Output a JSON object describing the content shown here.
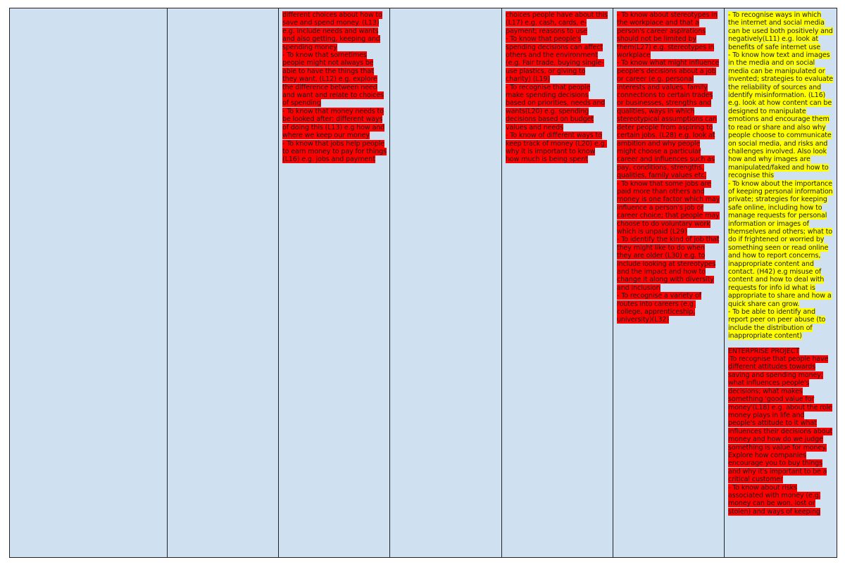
{
  "table": {
    "cells": {
      "c3": [
        "different choices about how to save and spend money. (L13) e.g. include needs and wants and also getting, keeping and spending money",
        "- To know that sometimes people might not always be able to have the things that they want. (L12) e.g. explore the difference between need and want and relate to choices of spending",
        "- To know that money needs to be looked after; different ways of doing this (L13) e.g how and where we keep our money",
        "- To know that jobs help people to earn money to pay for things (L16) e.g. jobs and payment"
      ],
      "c5": [
        "choices people have about this (L17) e.g. cash, cards, e-payment; reasons to use",
        "- To know that people's spending decisions can affect others and the environment (e.g. Fair trade, buying single-use plastics, or giving to charity) (L19)",
        "- To recognise that people make spending decisions based on priorities, needs and wants(L20) e.g. spending decisions based on budget values and needs",
        "- To know of different ways to keep track of money (L20) e.g. why it is important to know how much is being spent"
      ],
      "c6": [
        "- To know about stereotypes in the workplace and that a person's career aspirations should not be limited by them(L27) e.g. stereotypes in workplace",
        "- To know what might influence people's decisions about a job or career (e.g. personal interests and values, family connections to certain trades or businesses, strengths and qualities, ways in which stereotypical assumptions can deter people from aspiring to certain jobs. (L28) e.g. look at ambition and why people might choose a particular career and influences such as pay, conditions, strengths, qualities, family values etc.",
        "- To know that some jobs are paid more than others and money is one factor which may influence a person's job or career choice; that people may choose to do voluntary work which is unpaid (L29)",
        "- To identify the kind of job that they might like to do when they are older (L30) e.g. to include looking at stereotypes and the impact and how to change it along with diversity and inclusion",
        "- To recognise a variety of routes into careers (e.g. college, apprenticeship, university)(L32)"
      ],
      "c7_yellow": [
        "- To recognise ways in which the internet and social media can be used both positively and negatively(L11) e.g. look at benefits of safe internet use",
        "- To know how text and images in the media and on social media can be manipulated or invented; strategies to evaluate the reliability of sources and identify misinformation. (L16) e.g. look at how content can be designed to manipulate emotions and encourage them to read or share and also why people choose to communicate on social media, and risks and challenges involved. Also look how and why images are manipulated/faked and how to recognise this",
        "- To know about the importance of keeping personal information private; strategies for keeping safe online, including how to manage requests for personal information or images of themselves and others; what to do if frightened or worried by something seen or read online and how to report concerns, inappropriate content and contact. (H42) e.g misuse of content and how to deal with requests for info id what is appropriate to share and how a quick share can grow.",
        "- To be able to identify and report peer on peer abuse (to include the distribution of inappropriate content)"
      ],
      "c7_red": [
        "ENTERPRISE PROJECT",
        "-To recognise that people have different attitudes towards saving and spending money; what influences people's decisions; what makes something 'good value for money'(L18) e.g. about the role money plays in life and people's attitude to it what influences their decisions about money and how do we judge something is value for money. Explore how companies encourage you to buy things and why it's important to be a critical customer",
        "- To know about risks associated with money (e.g. money can be won, lost or stolen) and ways of keeping"
      ]
    }
  }
}
